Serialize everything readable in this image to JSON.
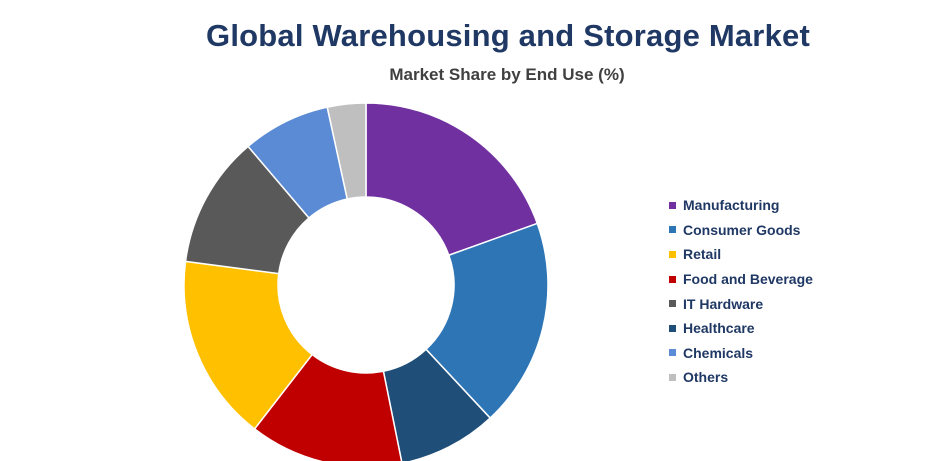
{
  "chart_data": {
    "type": "pie",
    "title": "Global Warehousing and Storage Market",
    "subtitle": "Market Share by End Use (%)",
    "categories": [
      "Manufacturing",
      "Consumer Goods",
      "Retail",
      "Food and Beverage",
      "IT Hardware",
      "Healthcare",
      "Chemicals",
      "Others"
    ],
    "values": [
      20,
      19,
      17,
      14,
      12,
      9,
      8,
      3.5
    ],
    "slice_order_clockwise_from_top": [
      "Manufacturing",
      "Consumer Goods",
      "Healthcare",
      "Food and Beverage",
      "Retail",
      "IT Hardware",
      "Chemicals",
      "Others"
    ],
    "colors": {
      "Manufacturing": "#7030a0",
      "Consumer Goods": "#2e75b6",
      "Retail": "#ffc000",
      "Food and Beverage": "#c00000",
      "IT Hardware": "#595959",
      "Healthcare": "#1f4e79",
      "Chemicals": "#5b8bd5",
      "Others": "#bfbfbf"
    },
    "donut": true,
    "legend_position": "right"
  }
}
